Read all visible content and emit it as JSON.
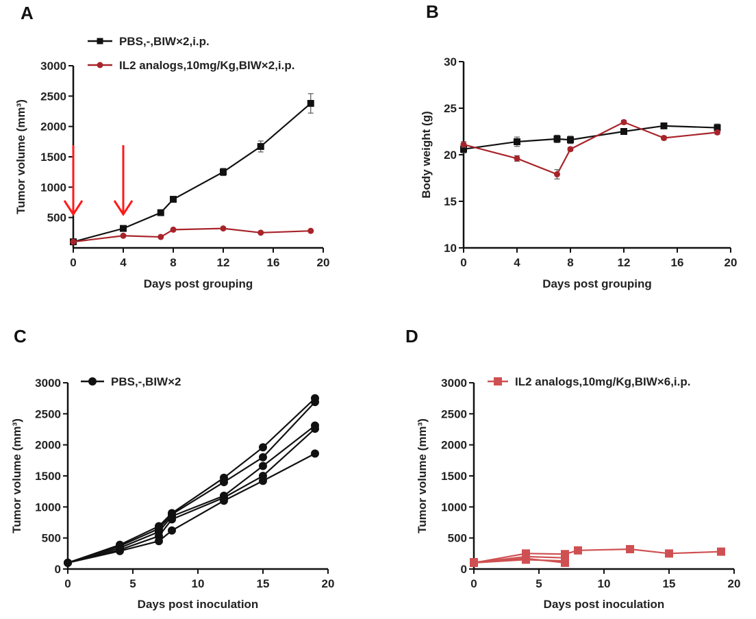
{
  "colors": {
    "pbs": "#111111",
    "il2": "#a8242a",
    "il2_light": "#cf5052",
    "arrow": "#ff1a1a"
  },
  "chart_data": [
    {
      "panel": "A",
      "type": "line",
      "xlabel": "Days post grouping",
      "ylabel": "Tumor volume (mm³)",
      "xlim": [
        0,
        20
      ],
      "xticks": [
        0,
        4,
        8,
        12,
        16,
        20
      ],
      "ylim": [
        0,
        3000
      ],
      "yticks": [
        500,
        1000,
        1500,
        2000,
        2500,
        3000
      ],
      "legend": "top",
      "arrows_at_x": [
        0,
        4
      ],
      "series": [
        {
          "name": "PBS,-,BIW×2,i.p.",
          "color": "#111111",
          "marker": "square",
          "x": [
            0,
            4,
            7,
            8,
            12,
            15,
            19
          ],
          "y": [
            100,
            320,
            580,
            800,
            1250,
            1670,
            2380
          ],
          "error": [
            20,
            30,
            30,
            30,
            60,
            90,
            160
          ]
        },
        {
          "name": "IL2 analogs,10mg/Kg,BIW×2,i.p.",
          "color": "#a8242a",
          "marker": "circle",
          "x": [
            0,
            4,
            7,
            8,
            12,
            15,
            19
          ],
          "y": [
            100,
            200,
            180,
            300,
            320,
            250,
            280
          ],
          "error": [
            10,
            15,
            15,
            15,
            20,
            15,
            15
          ]
        }
      ]
    },
    {
      "panel": "B",
      "type": "line",
      "xlabel": "Days post grouping",
      "ylabel": "Body weight (g)",
      "xlim": [
        0,
        20
      ],
      "xticks": [
        0,
        4,
        8,
        12,
        16,
        20
      ],
      "ylim": [
        10,
        30
      ],
      "yticks": [
        10,
        15,
        20,
        25,
        30
      ],
      "series": [
        {
          "color": "#111111",
          "marker": "square",
          "x": [
            0,
            4,
            7,
            8,
            12,
            15,
            19
          ],
          "y": [
            20.6,
            21.4,
            21.7,
            21.6,
            22.5,
            23.1,
            22.9
          ],
          "error": [
            0.4,
            0.5,
            0.4,
            0.4,
            0.3,
            0.3,
            0.4
          ]
        },
        {
          "color": "#a8242a",
          "marker": "circle",
          "x": [
            0,
            4,
            7,
            8,
            12,
            15,
            19
          ],
          "y": [
            21.1,
            19.6,
            17.9,
            20.6,
            23.5,
            21.8,
            22.4
          ],
          "error": [
            0.3,
            0.3,
            0.5,
            0.2,
            0.2,
            0.2,
            0.2
          ]
        }
      ]
    },
    {
      "panel": "C",
      "type": "line",
      "xlabel": "Days post inoculation",
      "ylabel": "Tumor volume (mm³)",
      "xlim": [
        0,
        20
      ],
      "xticks": [
        0,
        5,
        10,
        15,
        20
      ],
      "ylim": [
        0,
        3000
      ],
      "yticks": [
        0,
        500,
        1000,
        1500,
        2000,
        2500,
        3000
      ],
      "legend": "top-left",
      "legend_entry": {
        "name": "PBS,-,BIW×2",
        "color": "#111111",
        "marker": "circle"
      },
      "series": [
        {
          "color": "#111111",
          "marker": "circle",
          "x": [
            0,
            4,
            7,
            8,
            12,
            15,
            19
          ],
          "y": [
            100,
            390,
            690,
            900,
            1470,
            1960,
            2750
          ]
        },
        {
          "color": "#111111",
          "marker": "circle",
          "x": [
            0,
            4,
            7,
            8,
            12,
            15,
            19
          ],
          "y": [
            100,
            370,
            650,
            880,
            1400,
            1800,
            2690
          ]
        },
        {
          "color": "#111111",
          "marker": "circle",
          "x": [
            0,
            4,
            7,
            8,
            12,
            15,
            19
          ],
          "y": [
            100,
            340,
            600,
            850,
            1180,
            1660,
            2310
          ]
        },
        {
          "color": "#111111",
          "marker": "circle",
          "x": [
            0,
            4,
            7,
            8,
            12,
            15,
            19
          ],
          "y": [
            100,
            310,
            530,
            800,
            1150,
            1500,
            2260
          ]
        },
        {
          "color": "#111111",
          "marker": "circle",
          "x": [
            0,
            4,
            7,
            8,
            12,
            15,
            19
          ],
          "y": [
            100,
            290,
            450,
            620,
            1100,
            1420,
            1860
          ]
        }
      ]
    },
    {
      "panel": "D",
      "type": "line",
      "xlabel": "Days post inoculation",
      "ylabel": "Tumor volume (mm³)",
      "xlim": [
        0,
        20
      ],
      "xticks": [
        0,
        5,
        10,
        15,
        20
      ],
      "ylim": [
        0,
        3000
      ],
      "yticks": [
        0,
        500,
        1000,
        1500,
        2000,
        2500,
        3000
      ],
      "legend": "top",
      "legend_entry": {
        "name": "IL2 analogs,10mg/Kg,BIW×6,i.p.",
        "color": "#cf5052",
        "marker": "square"
      },
      "series": [
        {
          "color": "#cf5052",
          "marker": "square",
          "x": [
            0,
            4,
            7,
            8,
            12,
            15,
            19
          ],
          "y": [
            100,
            250,
            240,
            300,
            320,
            250,
            280
          ]
        },
        {
          "color": "#cf5052",
          "marker": "square",
          "x": [
            0,
            4,
            7
          ],
          "y": [
            100,
            200,
            180
          ]
        },
        {
          "color": "#cf5052",
          "marker": "square",
          "x": [
            0,
            4,
            7
          ],
          "y": [
            100,
            150,
            130
          ]
        },
        {
          "color": "#cf5052",
          "marker": "square",
          "x": [
            0,
            4,
            7
          ],
          "y": [
            110,
            170,
            100
          ]
        }
      ]
    }
  ]
}
